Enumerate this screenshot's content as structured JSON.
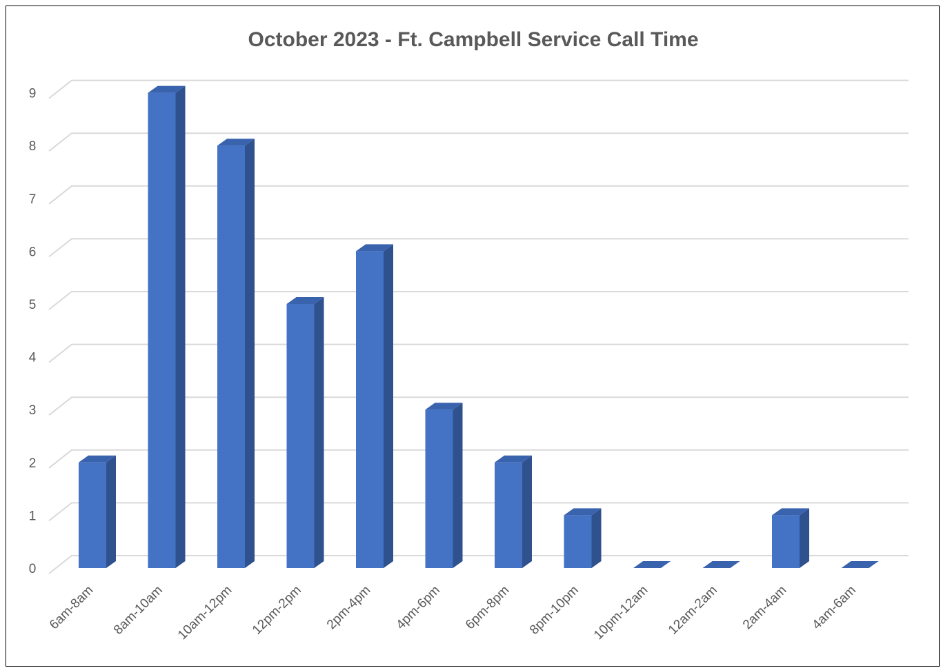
{
  "chart_data": {
    "type": "bar",
    "style": "3d-column",
    "title": "October 2023 - Ft. Campbell Service Call Time",
    "xlabel": "",
    "ylabel": "",
    "categories": [
      "6am-8am",
      "8am-10am",
      "10am-12pm",
      "12pm-2pm",
      "2pm-4pm",
      "4pm-6pm",
      "6pm-8pm",
      "8pm-10pm",
      "10pm-12am",
      "12am-2am",
      "2am-4am",
      "4am-6am"
    ],
    "values": [
      2,
      9,
      8,
      5,
      6,
      3,
      2,
      1,
      0,
      0,
      1,
      0
    ],
    "ylim": [
      0,
      9
    ],
    "yticks": [
      "0",
      "1",
      "2",
      "3",
      "4",
      "5",
      "6",
      "7",
      "8",
      "9"
    ],
    "grid": true,
    "legend": "none",
    "colors": {
      "front": "#4472C4",
      "side": "#2F528F",
      "top": "#3A63AE",
      "grid": "#D9D9D9",
      "text": "#595959"
    }
  }
}
